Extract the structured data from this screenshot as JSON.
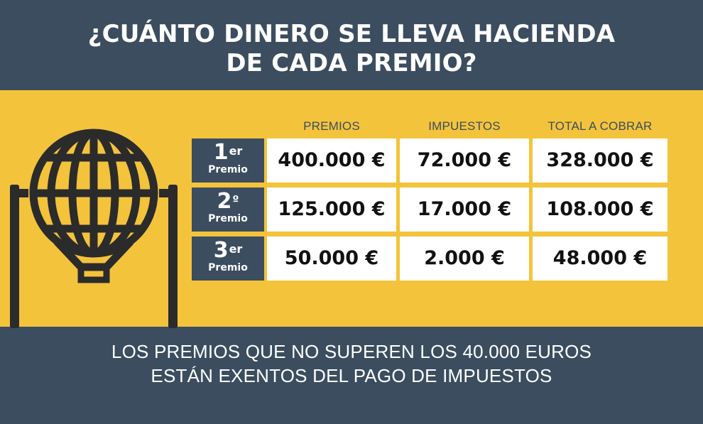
{
  "title": {
    "line1": "¿CUÁNTO DINERO SE LLEVA HACIENDA",
    "line2": "DE CADA PREMIO?"
  },
  "table": {
    "headers": [
      "PREMIOS",
      "IMPUESTOS",
      "TOTAL A COBRAR"
    ],
    "rows": [
      {
        "num": "1",
        "sup": "er",
        "label": "Premio",
        "premio": "400.000 €",
        "impuestos": "72.000 €",
        "total": "328.000 €"
      },
      {
        "num": "2",
        "sup": "º",
        "label": "Premio",
        "premio": "125.000 €",
        "impuestos": "17.000 €",
        "total": "108.000 €"
      },
      {
        "num": "3",
        "sup": "er",
        "label": "Premio",
        "premio": "50.000 €",
        "impuestos": "2.000 €",
        "total": "48.000 €"
      }
    ]
  },
  "note": {
    "line1": "LOS PREMIOS QUE NO SUPEREN LOS 40.000 EUROS",
    "line2": "ESTÁN EXENTOS DEL PAGO DE IMPUESTOS"
  },
  "colors": {
    "dark": "#3b4d5f",
    "yellow": "#f4c33c",
    "white": "#ffffff"
  },
  "icons": [
    "lottery-drum-icon"
  ]
}
